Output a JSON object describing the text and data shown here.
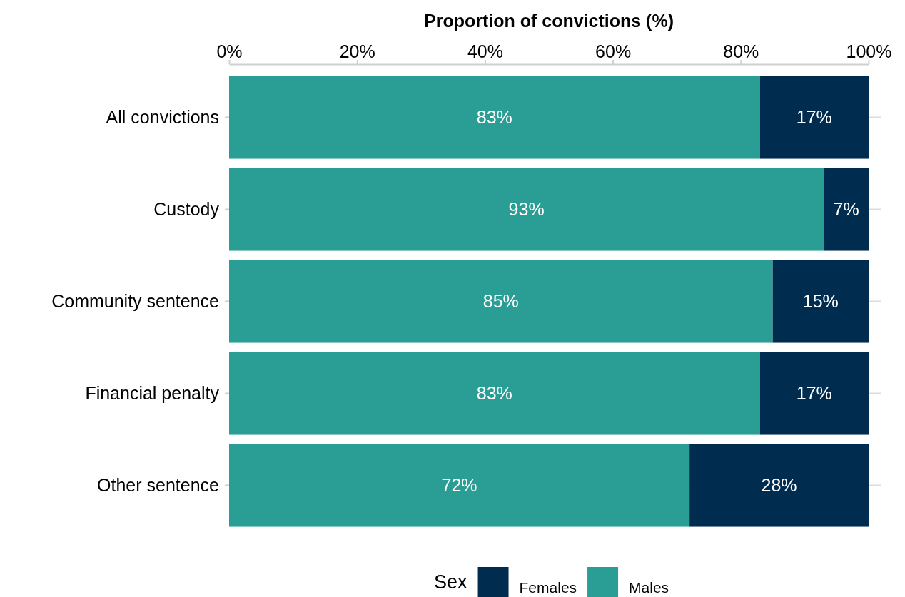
{
  "chart_data": {
    "type": "bar",
    "orientation": "horizontal",
    "stacked": true,
    "xlabel": "Proportion of convictions (%)",
    "legend_title": "Sex",
    "categories": [
      "All convictions",
      "Custody",
      "Community sentence",
      "Financial penalty",
      "Other sentence"
    ],
    "series": [
      {
        "name": "Males",
        "color": "#2a9d94",
        "values": [
          83,
          93,
          85,
          83,
          72
        ],
        "value_labels": [
          "83%",
          "93%",
          "85%",
          "83%",
          "72%"
        ]
      },
      {
        "name": "Females",
        "color": "#002d4f",
        "values": [
          17,
          7,
          15,
          17,
          28
        ],
        "value_labels": [
          "17%",
          "7%",
          "15%",
          "17%",
          "28%"
        ]
      }
    ],
    "xlim": [
      0,
      100
    ],
    "xticks": [
      {
        "value": 0,
        "label": "0%"
      },
      {
        "value": 20,
        "label": "20%"
      },
      {
        "value": 40,
        "label": "40%"
      },
      {
        "value": 60,
        "label": "60%"
      },
      {
        "value": 80,
        "label": "80%"
      },
      {
        "value": 100,
        "label": "100%"
      }
    ],
    "grid": "y",
    "legend": "bottom"
  }
}
